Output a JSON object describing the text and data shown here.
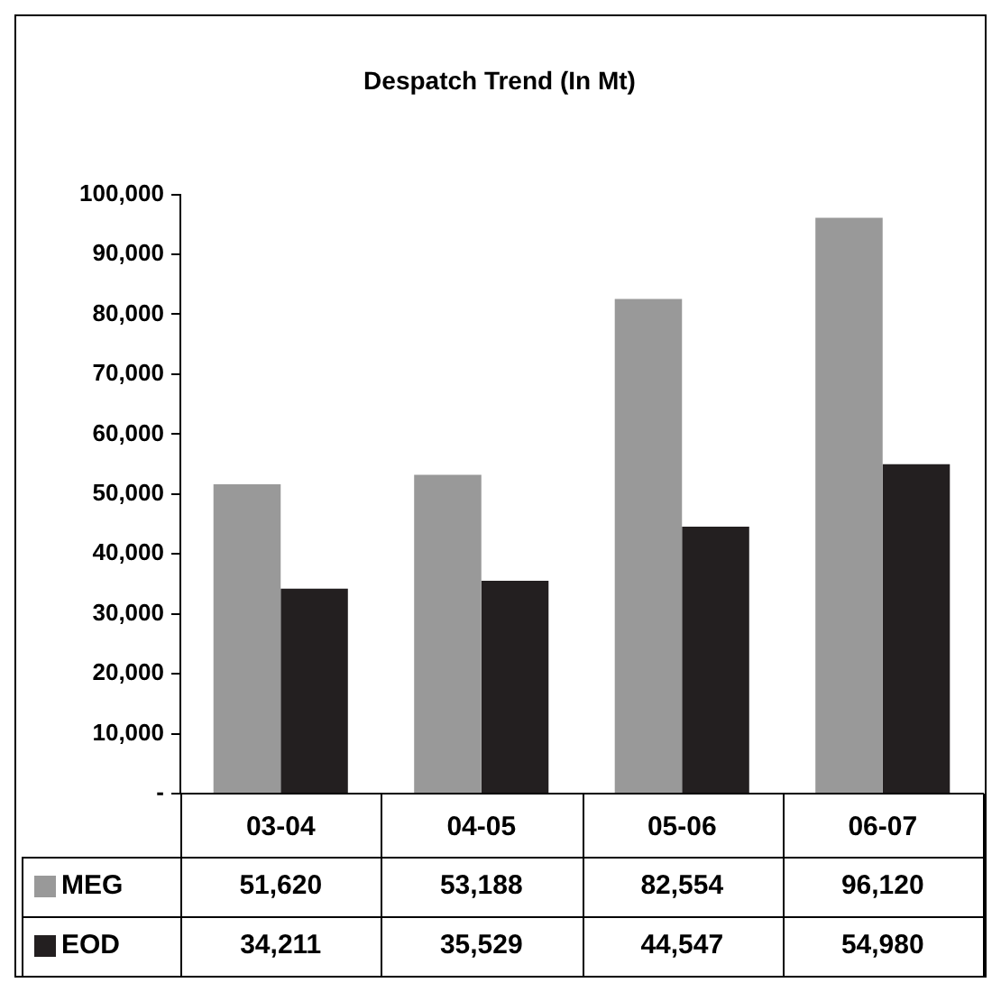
{
  "chart_data": {
    "type": "bar",
    "title": "Despatch Trend (In Mt)",
    "categories": [
      "03-04",
      "04-05",
      "05-06",
      "06-07"
    ],
    "series": [
      {
        "name": "MEG",
        "color": "#999999",
        "values": [
          51620,
          53188,
          82554,
          96120
        ],
        "value_labels": [
          "51,620",
          "53,188",
          "82,554",
          "96,120"
        ]
      },
      {
        "name": "EOD",
        "color": "#231f20",
        "values": [
          34211,
          35529,
          44547,
          54980
        ],
        "value_labels": [
          "34,211",
          "35,529",
          "44,547",
          "54,980"
        ]
      }
    ],
    "ylim": [
      0,
      100000
    ],
    "yticks": [
      {
        "value": 0,
        "label": "-"
      },
      {
        "value": 10000,
        "label": "10,000"
      },
      {
        "value": 20000,
        "label": "20,000"
      },
      {
        "value": 30000,
        "label": "30,000"
      },
      {
        "value": 40000,
        "label": "40,000"
      },
      {
        "value": 50000,
        "label": "50,000"
      },
      {
        "value": 60000,
        "label": "60,000"
      },
      {
        "value": 70000,
        "label": "70,000"
      },
      {
        "value": 80000,
        "label": "80,000"
      },
      {
        "value": 90000,
        "label": "90,000"
      },
      {
        "value": 100000,
        "label": "100,000"
      }
    ],
    "legend": "bottom",
    "grid": false
  }
}
